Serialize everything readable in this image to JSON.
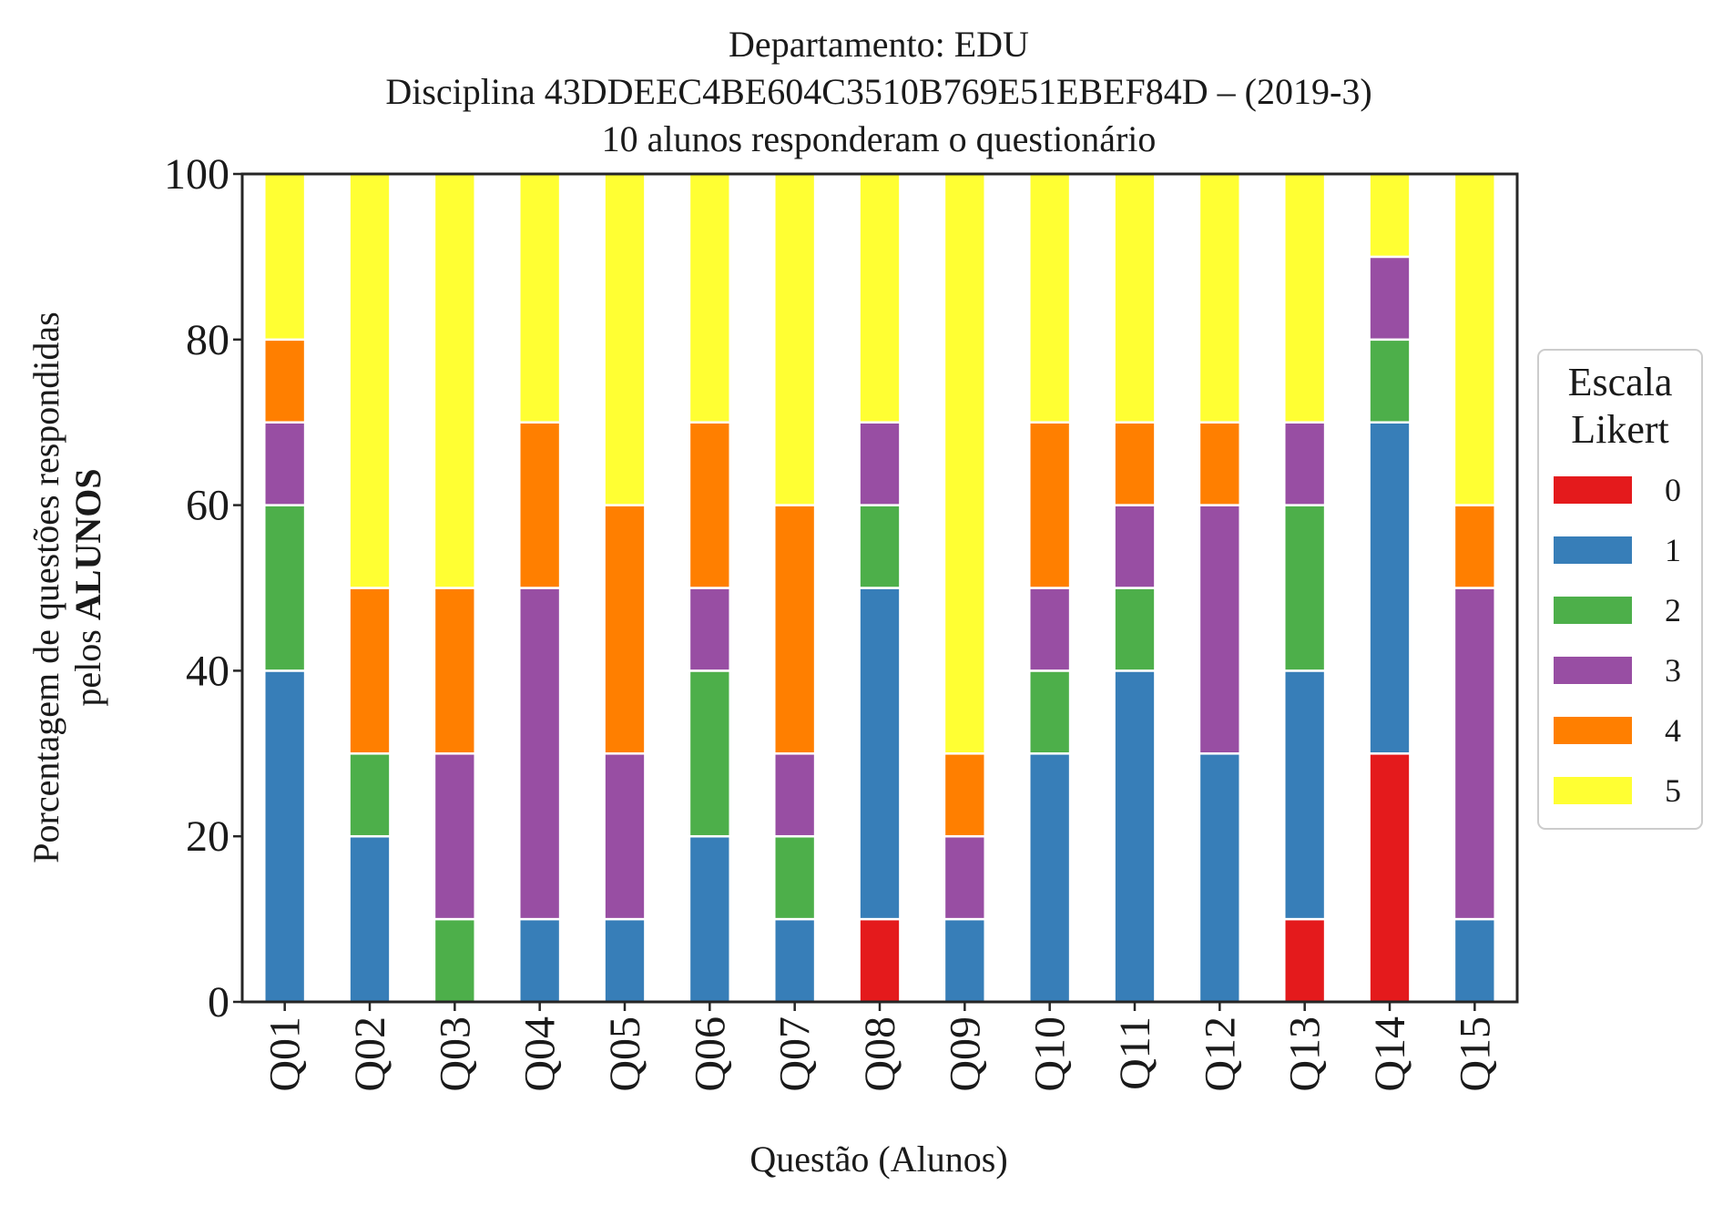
{
  "chart_data": {
    "type": "bar",
    "stacked": true,
    "title": [
      "Departamento: EDU",
      "Disciplina 43DDEEC4BE604C3510B769E51EBEF84D – (2019-3)",
      "10 alunos responderam o questionário"
    ],
    "xlabel": "Questão (Alunos)",
    "ylabel_line1": "Porcentagem de questões respondidas",
    "ylabel_line2_prefix": "pelos ",
    "ylabel_line2_bold": "ALUNOS",
    "ylim": [
      0,
      100
    ],
    "yticks": [
      "0",
      "20",
      "40",
      "60",
      "80",
      "100"
    ],
    "categories": [
      "Q01",
      "Q02",
      "Q03",
      "Q04",
      "Q05",
      "Q06",
      "Q07",
      "Q08",
      "Q09",
      "Q10",
      "Q11",
      "Q12",
      "Q13",
      "Q14",
      "Q15"
    ],
    "legend": {
      "title_line1": "Escala",
      "title_line2": "Likert",
      "placement": "center-right"
    },
    "grid": false,
    "series": [
      {
        "name": "0",
        "color": "#e41a1c",
        "values": [
          0,
          0,
          0,
          0,
          0,
          0,
          0,
          10,
          0,
          0,
          0,
          0,
          10,
          30,
          0
        ]
      },
      {
        "name": "1",
        "color": "#377eb8",
        "values": [
          40,
          20,
          0,
          10,
          10,
          20,
          10,
          40,
          10,
          30,
          40,
          30,
          30,
          40,
          10
        ]
      },
      {
        "name": "2",
        "color": "#4daf4a",
        "values": [
          20,
          10,
          10,
          0,
          0,
          20,
          10,
          10,
          0,
          10,
          10,
          0,
          20,
          10,
          0
        ]
      },
      {
        "name": "3",
        "color": "#984ea3",
        "values": [
          10,
          0,
          20,
          40,
          20,
          10,
          10,
          10,
          10,
          10,
          10,
          30,
          10,
          10,
          40
        ]
      },
      {
        "name": "4",
        "color": "#ff7f00",
        "values": [
          10,
          20,
          20,
          20,
          30,
          20,
          30,
          0,
          10,
          20,
          10,
          10,
          0,
          0,
          10
        ]
      },
      {
        "name": "5",
        "color": "#ffff33",
        "values": [
          20,
          50,
          50,
          30,
          40,
          30,
          40,
          30,
          70,
          30,
          30,
          30,
          30,
          10,
          40
        ]
      }
    ]
  }
}
